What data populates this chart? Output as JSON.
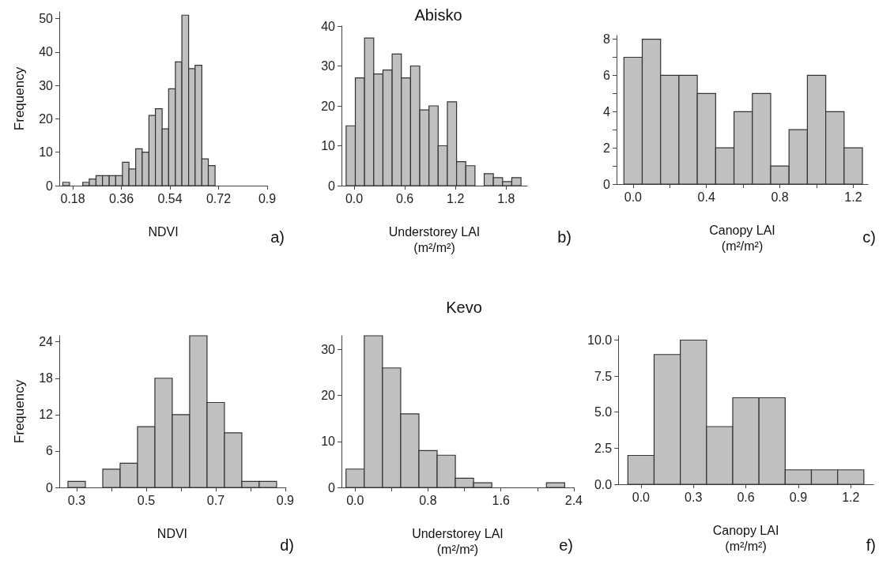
{
  "chart_data": [
    {
      "type": "histogram",
      "xlabel": "NDVI",
      "ylabel": "Frequency",
      "color": "#c0c0c0",
      "annotations": [
        "a)"
      ],
      "bins": [
        0.143,
        0.168,
        0.192,
        0.217,
        0.241,
        0.266,
        0.29,
        0.315,
        0.339,
        0.364,
        0.388,
        0.413,
        0.437,
        0.462,
        0.486,
        0.511,
        0.535,
        0.56,
        0.584,
        0.609,
        0.633,
        0.658,
        0.682,
        0.707
      ],
      "values": [
        1,
        0,
        0,
        1,
        2,
        3,
        3,
        3,
        3,
        7,
        5,
        11,
        10,
        21,
        23,
        17,
        29,
        37,
        51,
        35,
        36,
        8,
        6
      ],
      "xlim": [
        0.13,
        0.9
      ],
      "xticks": [
        0.18,
        0.36,
        0.54,
        0.72,
        0.9
      ],
      "ylim": [
        0,
        52
      ],
      "yticks": [
        0,
        10,
        20,
        30,
        40,
        50
      ]
    },
    {
      "type": "histogram",
      "title": "Abisko",
      "xlabel": "Understorey LAI\n(m²/m²)",
      "color": "#c0c0c0",
      "annotations": [
        "b)"
      ],
      "bins": [
        -0.095,
        0.014,
        0.123,
        0.232,
        0.341,
        0.45,
        0.559,
        0.668,
        0.777,
        0.886,
        0.995,
        1.104,
        1.213,
        1.322,
        1.431,
        1.54,
        1.649,
        1.758,
        1.867,
        1.976
      ],
      "values": [
        15,
        27,
        37,
        28,
        29,
        33,
        27,
        30,
        19,
        20,
        10,
        21,
        6,
        5,
        0,
        3,
        2,
        1,
        2
      ],
      "xlim": [
        -0.15,
        2.05
      ],
      "xticks": [
        {
          "value": 0,
          "label": "0.0"
        },
        0.6,
        1.2,
        1.8
      ],
      "ylim": [
        0,
        40
      ],
      "yticks": [
        0,
        10,
        20,
        30,
        40
      ]
    },
    {
      "type": "histogram",
      "xlabel": "Canopy LAI\n(m²/m²)",
      "color": "#c0c0c0",
      "annotations": [
        "c)"
      ],
      "bins": [
        -0.05,
        0.05,
        0.15,
        0.25,
        0.35,
        0.45,
        0.55,
        0.65,
        0.75,
        0.85,
        0.95,
        1.05,
        1.15,
        1.25
      ],
      "values": [
        7,
        8,
        6,
        6,
        5,
        2,
        4,
        5,
        1,
        3,
        6,
        4,
        2
      ],
      "xlim": [
        -0.09,
        1.28
      ],
      "xticks": [
        {
          "value": 0,
          "label": "0.0"
        },
        {
          "value": 0.2,
          "label": null
        },
        0.4,
        {
          "value": 0.6,
          "label": null
        },
        0.8,
        {
          "value": 1.0,
          "label": null
        },
        1.2
      ],
      "ylim": [
        0,
        8.2
      ],
      "yticks": [
        0,
        {
          "value": 1,
          "label": null
        },
        2,
        {
          "value": 3,
          "label": null
        },
        4,
        {
          "value": 5,
          "label": null
        },
        6,
        {
          "value": 7,
          "label": null
        },
        8
      ]
    },
    {
      "type": "histogram",
      "xlabel": "NDVI",
      "ylabel": "Frequency",
      "color": "#c0c0c0",
      "annotations": [
        "d)"
      ],
      "bins": [
        0.275,
        0.325,
        0.375,
        0.425,
        0.475,
        0.525,
        0.575,
        0.625,
        0.675,
        0.725,
        0.775,
        0.825,
        0.875
      ],
      "values": [
        1,
        0,
        3,
        4,
        10,
        18,
        12,
        25,
        14,
        9,
        1,
        1
      ],
      "xlim": [
        0.25,
        0.9
      ],
      "xticks": [
        0.3,
        {
          "value": 0.4,
          "label": null
        },
        0.5,
        {
          "value": 0.6,
          "label": null
        },
        0.7,
        {
          "value": 0.8,
          "label": null
        },
        0.9
      ],
      "ylim": [
        0,
        25
      ],
      "yticks": [
        0,
        6,
        12,
        18,
        24
      ]
    },
    {
      "type": "histogram",
      "title": "Kevo",
      "xlabel": "Understorey LAI\n(m²/m²)",
      "color": "#c0c0c0",
      "annotations": [
        "e)"
      ],
      "bins": [
        -0.1,
        0.1,
        0.3,
        0.5,
        0.7,
        0.9,
        1.1,
        1.3,
        1.5,
        1.7,
        1.9,
        2.1,
        2.3
      ],
      "values": [
        4,
        33,
        26,
        16,
        8,
        7,
        2,
        1,
        0,
        0,
        0,
        1
      ],
      "xlim": [
        -0.15,
        2.4
      ],
      "xticks": [
        {
          "value": 0,
          "label": "0.0"
        },
        {
          "value": 0.4,
          "label": null
        },
        0.8,
        {
          "value": 1.2,
          "label": null
        },
        1.6,
        {
          "value": 2.0,
          "label": null
        },
        2.4
      ],
      "ylim": [
        0,
        33
      ],
      "yticks": [
        0,
        10,
        20,
        30
      ]
    },
    {
      "type": "histogram",
      "xlabel": "Canopy LAI\n(m²/m²)",
      "color": "#c0c0c0",
      "annotations": [
        "f)"
      ],
      "bins": [
        -0.075,
        0.075,
        0.225,
        0.375,
        0.525,
        0.675,
        0.825,
        0.975,
        1.125,
        1.275
      ],
      "values": [
        2,
        9,
        10,
        4,
        6,
        6,
        1,
        1,
        1
      ],
      "xlim": [
        -0.13,
        1.33
      ],
      "xticks": [
        {
          "value": 0,
          "label": "0.0"
        },
        0.3,
        0.6,
        0.9,
        1.2
      ],
      "ylim": [
        0,
        10.3
      ],
      "yticks": [
        {
          "value": 0,
          "label": "0.0"
        },
        2.5,
        {
          "value": 5,
          "label": "5.0"
        },
        7.5,
        {
          "value": 10,
          "label": "10.0"
        }
      ]
    }
  ]
}
